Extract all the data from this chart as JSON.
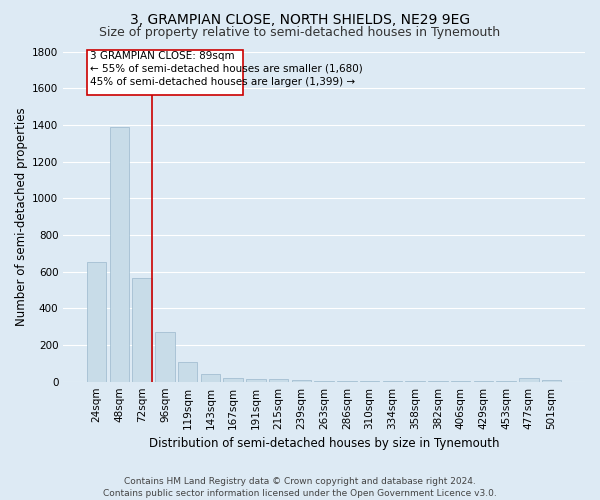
{
  "title": "3, GRAMPIAN CLOSE, NORTH SHIELDS, NE29 9EG",
  "subtitle": "Size of property relative to semi-detached houses in Tynemouth",
  "xlabel": "Distribution of semi-detached houses by size in Tynemouth",
  "ylabel": "Number of semi-detached properties",
  "bar_color": "#c8dce8",
  "bar_edge_color": "#9ab8cc",
  "background_color": "#ddeaf4",
  "grid_color": "#ffffff",
  "categories": [
    "24sqm",
    "48sqm",
    "72sqm",
    "96sqm",
    "119sqm",
    "143sqm",
    "167sqm",
    "191sqm",
    "215sqm",
    "239sqm",
    "263sqm",
    "286sqm",
    "310sqm",
    "334sqm",
    "358sqm",
    "382sqm",
    "406sqm",
    "429sqm",
    "453sqm",
    "477sqm",
    "501sqm"
  ],
  "values": [
    650,
    1390,
    565,
    270,
    105,
    40,
    20,
    12,
    12,
    10,
    6,
    5,
    3,
    2,
    2,
    1,
    1,
    1,
    1,
    20,
    8
  ],
  "annotation_title": "3 GRAMPIAN CLOSE: 89sqm",
  "annotation_line1": "← 55% of semi-detached houses are smaller (1,680)",
  "annotation_line2": "45% of semi-detached houses are larger (1,399) →",
  "annotation_box_facecolor": "#ffffff",
  "annotation_box_edgecolor": "#cc0000",
  "vline_color": "#cc0000",
  "vline_x": 2.42,
  "ylim": [
    0,
    1800
  ],
  "yticks": [
    0,
    200,
    400,
    600,
    800,
    1000,
    1200,
    1400,
    1600,
    1800
  ],
  "footer": "Contains HM Land Registry data © Crown copyright and database right 2024.\nContains public sector information licensed under the Open Government Licence v3.0.",
  "title_fontsize": 10,
  "subtitle_fontsize": 9,
  "xlabel_fontsize": 8.5,
  "ylabel_fontsize": 8.5,
  "tick_fontsize": 7.5,
  "annotation_fontsize": 7.5,
  "footer_fontsize": 6.5
}
